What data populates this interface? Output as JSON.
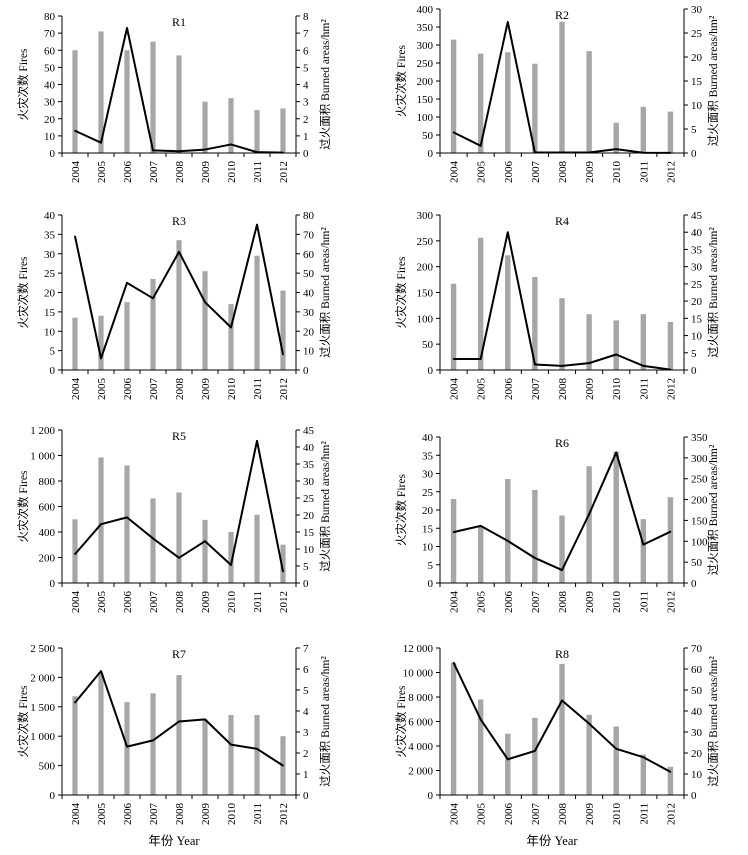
{
  "figure": {
    "xlabel": "年份 Year"
  },
  "chart_data": [
    {
      "type": "bar",
      "title": "R1",
      "categories": [
        "2004",
        "2005",
        "2006",
        "2007",
        "2008",
        "2009",
        "2010",
        "2011",
        "2012"
      ],
      "ylabel": "火灾次数 Fires",
      "y2label": "过火面积 Burned areas/hm²",
      "ylim": [
        0,
        80
      ],
      "yticks": [
        0,
        10,
        20,
        30,
        40,
        50,
        60,
        70,
        80
      ],
      "y2lim": [
        0,
        8
      ],
      "y2ticks": [
        0,
        1,
        2,
        3,
        4,
        5,
        6,
        7,
        8
      ],
      "series": [
        {
          "type": "bar",
          "axis": "left",
          "values": [
            60,
            71,
            60,
            65,
            57,
            30,
            32,
            25,
            26
          ]
        },
        {
          "type": "line",
          "axis": "right",
          "values": [
            1.3,
            0.6,
            7.3,
            0.15,
            0.1,
            0.2,
            0.5,
            0.05,
            0.02
          ]
        }
      ]
    },
    {
      "type": "bar",
      "title": "R2",
      "categories": [
        "2004",
        "2005",
        "2006",
        "2007",
        "2008",
        "2009",
        "2010",
        "2011",
        "2012"
      ],
      "ylabel": "火灾次数 Fires",
      "y2label": "过火面积 Burned areas/hm²",
      "ylim": [
        0,
        400
      ],
      "yticks": [
        0,
        50,
        100,
        150,
        200,
        250,
        300,
        350,
        400
      ],
      "y2lim": [
        0,
        30
      ],
      "y2ticks": [
        0,
        5,
        10,
        15,
        20,
        25,
        30
      ],
      "series": [
        {
          "type": "bar",
          "axis": "left",
          "values": [
            315,
            276,
            280,
            248,
            365,
            283,
            84,
            128,
            115
          ]
        },
        {
          "type": "line",
          "axis": "right",
          "values": [
            4.3,
            1.5,
            27.3,
            0.1,
            0.1,
            0.1,
            0.8,
            0.05,
            0.02
          ]
        }
      ]
    },
    {
      "type": "bar",
      "title": "R3",
      "categories": [
        "2004",
        "2005",
        "2006",
        "2007",
        "2008",
        "2009",
        "2010",
        "2011",
        "2012"
      ],
      "ylabel": "火灾次数 Fires",
      "y2label": "过火面积 Burned areas/hm²",
      "ylim": [
        0,
        40
      ],
      "yticks": [
        0,
        5,
        10,
        15,
        20,
        25,
        30,
        35,
        40
      ],
      "y2lim": [
        0,
        80
      ],
      "y2ticks": [
        0,
        10,
        20,
        30,
        40,
        50,
        60,
        70,
        80
      ],
      "series": [
        {
          "type": "bar",
          "axis": "left",
          "values": [
            13.5,
            14,
            17.5,
            23.5,
            33.5,
            25.5,
            17,
            29.5,
            20.5
          ]
        },
        {
          "type": "line",
          "axis": "right",
          "values": [
            69,
            6,
            45,
            37,
            61,
            35,
            22,
            75,
            8
          ]
        }
      ]
    },
    {
      "type": "bar",
      "title": "R4",
      "categories": [
        "2004",
        "2005",
        "2006",
        "2007",
        "2008",
        "2009",
        "2010",
        "2011",
        "2012"
      ],
      "ylabel": "火灾次数 Fires",
      "y2label": "过火面积 Burned areas/hm²",
      "ylim": [
        0,
        300
      ],
      "yticks": [
        0,
        50,
        100,
        150,
        200,
        250,
        300
      ],
      "y2lim": [
        0,
        45
      ],
      "y2ticks": [
        0,
        5,
        10,
        15,
        20,
        25,
        30,
        35,
        40,
        45
      ],
      "series": [
        {
          "type": "bar",
          "axis": "left",
          "values": [
            167,
            256,
            222,
            180,
            139,
            108,
            96,
            108,
            93
          ]
        },
        {
          "type": "line",
          "axis": "right",
          "values": [
            3.2,
            3.2,
            40,
            1.6,
            1.2,
            2,
            4.5,
            1.2,
            0.1
          ]
        }
      ]
    },
    {
      "type": "bar",
      "title": "R5",
      "categories": [
        "2004",
        "2005",
        "2006",
        "2007",
        "2008",
        "2009",
        "2010",
        "2011",
        "2012"
      ],
      "ylabel": "火灾次数 Fires",
      "y2label": "过火面积 Burned areas/hm²",
      "ylim": [
        0,
        1200
      ],
      "yticks": [
        0,
        200,
        400,
        600,
        800,
        1000,
        1200
      ],
      "yticklabels": [
        "0",
        "200",
        "400",
        "600",
        "800",
        "1 000",
        "1 200"
      ],
      "y2lim": [
        0,
        45
      ],
      "y2ticks": [
        0,
        5,
        10,
        15,
        20,
        25,
        30,
        35,
        40,
        45
      ],
      "series": [
        {
          "type": "bar",
          "axis": "left",
          "values": [
            500,
            985,
            922,
            663,
            710,
            495,
            400,
            535,
            300
          ]
        },
        {
          "type": "line",
          "axis": "right",
          "values": [
            8.5,
            17.3,
            19.3,
            13.1,
            7.4,
            12.3,
            5.3,
            41.8,
            3.4
          ]
        }
      ]
    },
    {
      "type": "bar",
      "title": "R6",
      "categories": [
        "2004",
        "2005",
        "2006",
        "2007",
        "2008",
        "2009",
        "2010",
        "2011",
        "2012"
      ],
      "ylabel": "火灾次数 Fires",
      "y2label": "过火面积 Burned areas/hm²",
      "ylim": [
        0,
        40
      ],
      "yticks": [
        0,
        5,
        10,
        15,
        20,
        25,
        30,
        35,
        40
      ],
      "y2lim": [
        0,
        350
      ],
      "y2ticks": [
        0,
        50,
        100,
        150,
        200,
        250,
        300,
        350
      ],
      "series": [
        {
          "type": "bar",
          "axis": "left",
          "values": [
            23,
            15.5,
            28.5,
            25.5,
            18.5,
            32,
            36,
            17.5,
            23.5
          ]
        },
        {
          "type": "line",
          "axis": "right",
          "values": [
            122,
            137,
            101,
            60,
            31,
            165,
            313,
            92,
            123
          ]
        }
      ]
    },
    {
      "type": "bar",
      "title": "R7",
      "categories": [
        "2004",
        "2005",
        "2006",
        "2007",
        "2008",
        "2009",
        "2010",
        "2011",
        "2012"
      ],
      "ylabel": "火灾次数 Fires",
      "y2label": "过火面积 Burned areas/hm²",
      "ylim": [
        0,
        2500
      ],
      "yticks": [
        0,
        500,
        1000,
        1500,
        2000,
        2500
      ],
      "yticklabels": [
        "0",
        "500",
        "1 000",
        "1 500",
        "2 000",
        "2 500"
      ],
      "y2lim": [
        0,
        7
      ],
      "y2ticks": [
        0,
        1,
        2,
        3,
        4,
        5,
        6,
        7
      ],
      "series": [
        {
          "type": "bar",
          "axis": "left",
          "values": [
            1680,
            2070,
            1580,
            1730,
            2040,
            1285,
            1360,
            1360,
            1000
          ]
        },
        {
          "type": "line",
          "axis": "right",
          "values": [
            4.4,
            5.9,
            2.3,
            2.6,
            3.5,
            3.6,
            2.4,
            2.2,
            1.4
          ]
        }
      ]
    },
    {
      "type": "bar",
      "title": "R8",
      "categories": [
        "2004",
        "2005",
        "2006",
        "2007",
        "2008",
        "2009",
        "2010",
        "2011",
        "2012"
      ],
      "ylabel": "火灾次数 Fires",
      "y2label": "过火面积 Burned areas/hm²",
      "ylim": [
        0,
        12000
      ],
      "yticks": [
        0,
        2000,
        4000,
        6000,
        8000,
        10000,
        12000
      ],
      "yticklabels": [
        "0",
        "2 000",
        "4 000",
        "6 000",
        "8 000",
        "10 000",
        "12 000"
      ],
      "y2lim": [
        0,
        70
      ],
      "y2ticks": [
        0,
        10,
        20,
        30,
        40,
        50,
        60,
        70
      ],
      "series": [
        {
          "type": "bar",
          "axis": "left",
          "values": [
            10800,
            7800,
            5000,
            6300,
            10700,
            6550,
            5600,
            3300,
            2300
          ]
        },
        {
          "type": "line",
          "axis": "right",
          "values": [
            63,
            36,
            17,
            21,
            45,
            34,
            22,
            18,
            11
          ]
        }
      ]
    }
  ],
  "colors": {
    "bar": "#a6a6a6",
    "line": "#000000",
    "axis": "#000000"
  }
}
